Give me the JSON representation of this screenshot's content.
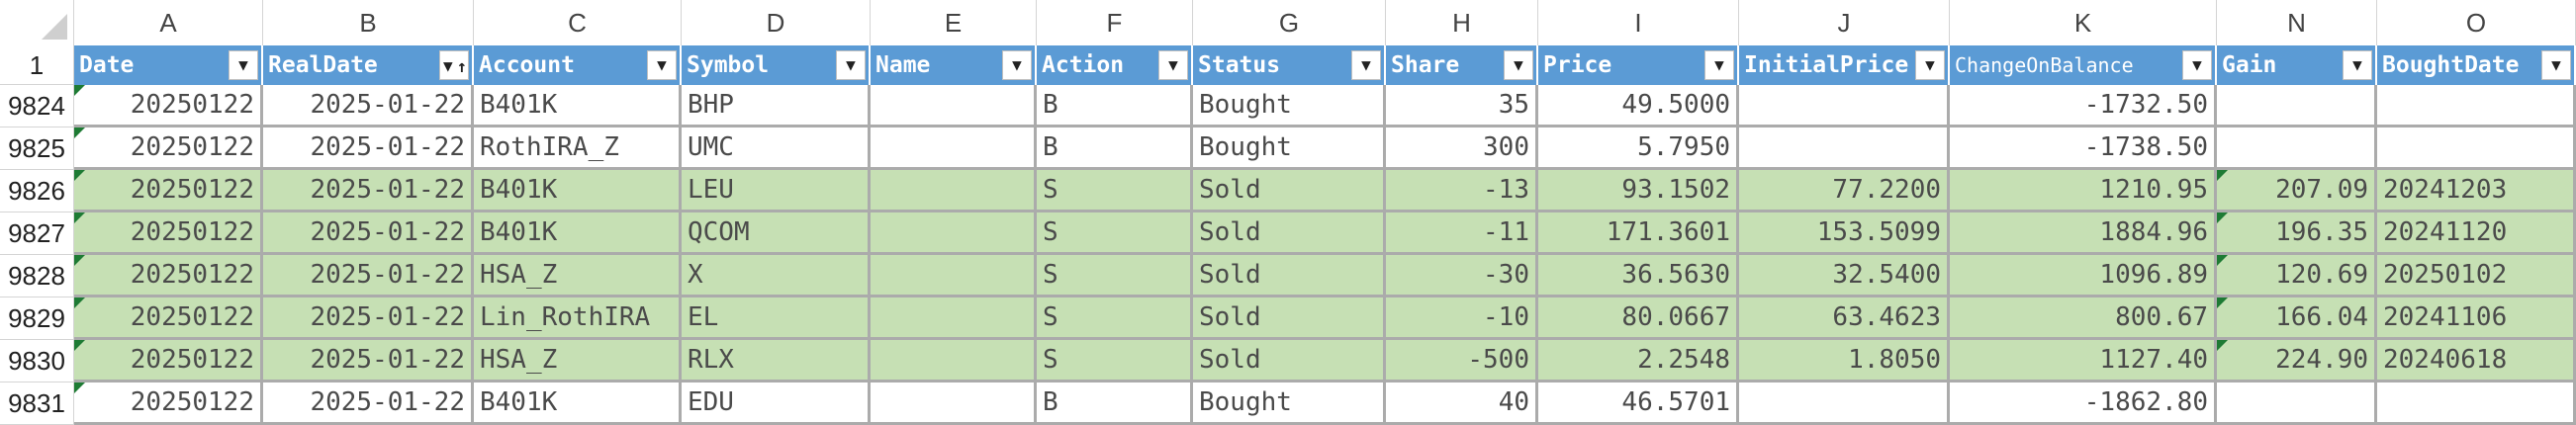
{
  "sheet": {
    "column_letters": [
      "A",
      "B",
      "C",
      "D",
      "E",
      "F",
      "G",
      "H",
      "I",
      "J",
      "K",
      "N",
      "O"
    ],
    "header_row_number": "1",
    "headers": [
      "Date",
      "RealDate",
      "Account",
      "Symbol",
      "Name",
      "Action",
      "Status",
      "Share",
      "Price",
      "InitialPrice",
      "ChangeOnBalance",
      "Gain",
      "BoughtDate"
    ],
    "sorted_column": "RealDate",
    "sort_direction": "ascending",
    "rows": [
      {
        "rownum": "9824",
        "status_type": "bought",
        "cells": [
          "20250122",
          "2025-01-22",
          "B401K",
          "BHP",
          "",
          "B",
          "Bought",
          "35",
          "49.5000",
          "",
          "-1732.50",
          "",
          ""
        ]
      },
      {
        "rownum": "9825",
        "status_type": "bought",
        "cells": [
          "20250122",
          "2025-01-22",
          "RothIRA_Z",
          "UMC",
          "",
          "B",
          "Bought",
          "300",
          "5.7950",
          "",
          "-1738.50",
          "",
          ""
        ]
      },
      {
        "rownum": "9826",
        "status_type": "sold",
        "cells": [
          "20250122",
          "2025-01-22",
          "B401K",
          "LEU",
          "",
          "S",
          "Sold",
          "-13",
          "93.1502",
          "77.2200",
          "1210.95",
          "207.09",
          "20241203"
        ]
      },
      {
        "rownum": "9827",
        "status_type": "sold",
        "cells": [
          "20250122",
          "2025-01-22",
          "B401K",
          "QCOM",
          "",
          "S",
          "Sold",
          "-11",
          "171.3601",
          "153.5099",
          "1884.96",
          "196.35",
          "20241120"
        ]
      },
      {
        "rownum": "9828",
        "status_type": "sold",
        "cells": [
          "20250122",
          "2025-01-22",
          "HSA_Z",
          "X",
          "",
          "S",
          "Sold",
          "-30",
          "36.5630",
          "32.5400",
          "1096.89",
          "120.69",
          "20250102"
        ]
      },
      {
        "rownum": "9829",
        "status_type": "sold",
        "cells": [
          "20250122",
          "2025-01-22",
          "Lin_RothIRA",
          "EL",
          "",
          "S",
          "Sold",
          "-10",
          "80.0667",
          "63.4623",
          "800.67",
          "166.04",
          "20241106"
        ]
      },
      {
        "rownum": "9830",
        "status_type": "sold",
        "cells": [
          "20250122",
          "2025-01-22",
          "HSA_Z",
          "RLX",
          "",
          "S",
          "Sold",
          "-500",
          "2.2548",
          "1.8050",
          "1127.40",
          "224.90",
          "20240618"
        ]
      },
      {
        "rownum": "9831",
        "status_type": "bought",
        "cells": [
          "20250122",
          "2025-01-22",
          "B401K",
          "EDU",
          "",
          "B",
          "Bought",
          "40",
          "46.5701",
          "",
          "-1862.80",
          "",
          ""
        ]
      }
    ],
    "colors": {
      "header_bg": "#5b9bd5",
      "sold_row_bg": "#c6e0b4",
      "bought_row_bg": "#ffffff",
      "error_flag": "#1e7b34"
    },
    "icons": {
      "filter_button": "dropdown-arrow-icon",
      "sort_indicator": "sort-ascending-icon",
      "error_indicator": "green-triangle-icon"
    }
  }
}
